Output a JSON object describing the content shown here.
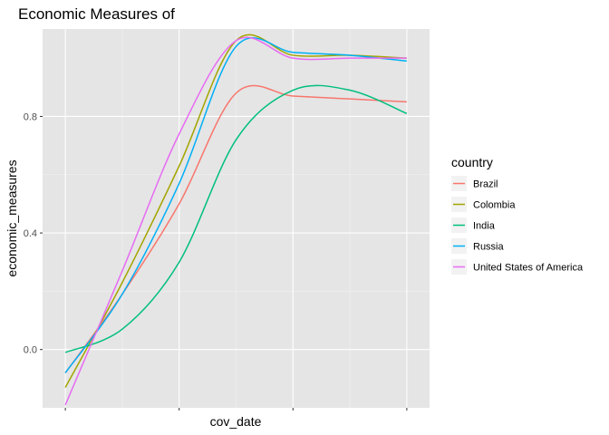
{
  "chart_data": {
    "type": "line",
    "title": "Economic Measures of",
    "xlabel": "cov_date",
    "ylabel": "economic_measures",
    "x": [
      0,
      0.5,
      1,
      1.5,
      2,
      2.5,
      3
    ],
    "xlim": [
      -0.2,
      3.2
    ],
    "ylim": [
      -0.2,
      1.1
    ],
    "y_ticks": [
      0.0,
      0.4,
      0.8
    ],
    "y_tick_labels": [
      "0.0",
      "0.4",
      "0.8"
    ],
    "x_ticks": [
      0,
      1,
      2,
      3
    ],
    "x_tick_labels": [
      "",
      "",
      "",
      ""
    ],
    "grid": true,
    "panel_background": "#e5e5e5",
    "legend": {
      "title": "country",
      "position": "right"
    },
    "series": [
      {
        "name": "Brazil",
        "color": "#f8766d",
        "values": [
          -0.08,
          0.19,
          0.5,
          0.88,
          0.87,
          0.86,
          0.85
        ]
      },
      {
        "name": "Colombia",
        "color": "#a3a500",
        "values": [
          -0.13,
          0.23,
          0.63,
          1.06,
          1.01,
          1.01,
          1.0
        ]
      },
      {
        "name": "India",
        "color": "#00bf7d",
        "values": [
          -0.01,
          0.07,
          0.3,
          0.72,
          0.89,
          0.89,
          0.81
        ]
      },
      {
        "name": "Russia",
        "color": "#00b0f6",
        "values": [
          -0.08,
          0.19,
          0.57,
          1.04,
          1.02,
          1.01,
          0.99
        ]
      },
      {
        "name": "United States of America",
        "color": "#e76bf3",
        "values": [
          -0.19,
          0.27,
          0.74,
          1.06,
          1.0,
          1.0,
          1.0
        ]
      }
    ]
  }
}
